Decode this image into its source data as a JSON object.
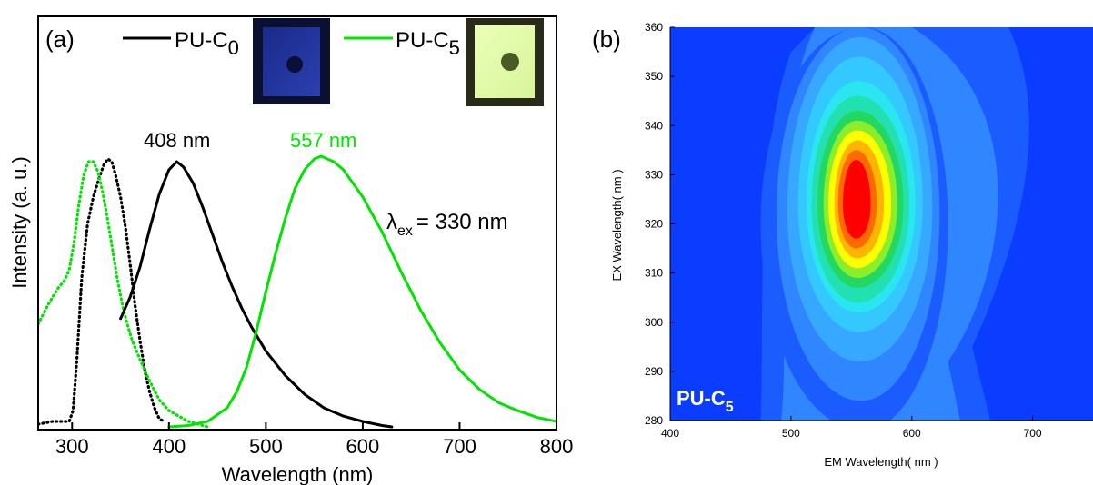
{
  "chart_data": [
    {
      "type": "line",
      "panel_label": "(a)",
      "xlabel": "Wavelength (nm)",
      "ylabel": "Intensity (a. u.)",
      "xlim": [
        265,
        800
      ],
      "ylim": [
        0,
        1.0
      ],
      "xticks": [
        "300",
        "400",
        "500",
        "600",
        "700",
        "800"
      ],
      "legend": [
        {
          "name_main": "PU-C",
          "name_sub": "0",
          "color": "#000000"
        },
        {
          "name_main": "PU-C",
          "name_sub": "5",
          "color": "#00e400"
        }
      ],
      "annotations": {
        "peak_black": "408 nm",
        "peak_green": "557 nm",
        "lambda_symbol": "λ",
        "lambda_sub": "ex",
        "lambda_value": "= 330 nm"
      },
      "series": [
        {
          "id": "black_excitation",
          "color": "#000000",
          "style": "dotted",
          "x": [
            265,
            280,
            290,
            297,
            301,
            305,
            310,
            316,
            322,
            328,
            333,
            337,
            341,
            345,
            350,
            355,
            360,
            365,
            370,
            375,
            380,
            385,
            390,
            395
          ],
          "y": [
            0.01,
            0.02,
            0.02,
            0.02,
            0.06,
            0.25,
            0.55,
            0.75,
            0.85,
            0.92,
            0.97,
            0.99,
            0.98,
            0.93,
            0.85,
            0.74,
            0.6,
            0.45,
            0.32,
            0.21,
            0.13,
            0.07,
            0.03,
            0.02
          ]
        },
        {
          "id": "green_excitation",
          "color": "#00e400",
          "style": "dotted",
          "x": [
            265,
            275,
            285,
            292,
            297,
            302,
            307,
            312,
            317,
            322,
            327,
            332,
            337,
            342,
            347,
            352,
            357,
            362,
            370,
            380,
            390,
            400,
            420,
            440
          ],
          "y": [
            0.38,
            0.45,
            0.51,
            0.54,
            0.58,
            0.68,
            0.82,
            0.93,
            0.98,
            0.98,
            0.94,
            0.86,
            0.76,
            0.65,
            0.54,
            0.45,
            0.38,
            0.32,
            0.25,
            0.17,
            0.1,
            0.06,
            0.02,
            0.0
          ]
        },
        {
          "id": "black_emission",
          "color": "#000000",
          "style": "solid",
          "x": [
            350,
            360,
            370,
            380,
            390,
            400,
            408,
            415,
            425,
            435,
            445,
            455,
            465,
            475,
            485,
            500,
            520,
            540,
            560,
            580,
            600,
            620,
            630
          ],
          "y": [
            0.4,
            0.48,
            0.59,
            0.73,
            0.86,
            0.95,
            0.98,
            0.96,
            0.9,
            0.81,
            0.71,
            0.61,
            0.52,
            0.44,
            0.37,
            0.28,
            0.19,
            0.12,
            0.07,
            0.04,
            0.02,
            0.005,
            0.0
          ]
        },
        {
          "id": "green_emission",
          "color": "#00e400",
          "style": "solid",
          "x": [
            400,
            420,
            440,
            460,
            470,
            480,
            490,
            500,
            510,
            520,
            530,
            540,
            550,
            557,
            570,
            580,
            600,
            620,
            640,
            660,
            680,
            700,
            720,
            740,
            760,
            780,
            800
          ],
          "y": [
            0.0,
            0.005,
            0.02,
            0.07,
            0.13,
            0.22,
            0.35,
            0.5,
            0.64,
            0.77,
            0.88,
            0.95,
            0.99,
            1.0,
            0.98,
            0.95,
            0.85,
            0.72,
            0.57,
            0.43,
            0.31,
            0.21,
            0.14,
            0.09,
            0.06,
            0.035,
            0.02
          ]
        }
      ]
    },
    {
      "type": "heatmap",
      "panel_label": "(b)",
      "xlabel": "EM Wavelength( nm )",
      "ylabel": "EX Wavelength( nm )",
      "xlim": [
        400,
        750
      ],
      "ylim": [
        280,
        360
      ],
      "xticks": [
        400,
        500,
        600,
        700
      ],
      "yticks": [
        280,
        290,
        300,
        310,
        320,
        330,
        340,
        350,
        360
      ],
      "sample_label_main": "PU-C",
      "sample_label_sub": "5",
      "background_color": "#0a3dff",
      "contour_levels": [
        {
          "level": 1,
          "color": "#1a5cff",
          "cx": 560,
          "cy": 320,
          "rx_left": 85,
          "rx_right": 70,
          "ry_top": 40,
          "ry_bottom": 42
        },
        {
          "level": 2,
          "color": "#2f86ff",
          "cx": 558,
          "cy": 322,
          "rx_left": 70,
          "rx_right": 65,
          "ry_top": 38,
          "ry_bottom": 38
        },
        {
          "level": 3,
          "color": "#37a8ff",
          "cx": 557,
          "cy": 323,
          "rx_left": 60,
          "rx_right": 60,
          "ry_top": 35,
          "ry_bottom": 31
        },
        {
          "level": 4,
          "color": "#33c9ff",
          "cx": 556,
          "cy": 324,
          "rx_left": 50,
          "rx_right": 53,
          "ry_top": 30,
          "ry_bottom": 26
        },
        {
          "level": 5,
          "color": "#29e6f0",
          "cx": 556,
          "cy": 324,
          "rx_left": 43,
          "rx_right": 47,
          "ry_top": 25,
          "ry_bottom": 22
        },
        {
          "level": 6,
          "color": "#22e0b0",
          "cx": 555,
          "cy": 324,
          "rx_left": 38,
          "rx_right": 43,
          "ry_top": 22,
          "ry_bottom": 20
        },
        {
          "level": 7,
          "color": "#22d860",
          "cx": 555,
          "cy": 324,
          "rx_left": 33,
          "rx_right": 38,
          "ry_top": 19,
          "ry_bottom": 17
        },
        {
          "level": 8,
          "color": "#8cee2a",
          "cx": 555,
          "cy": 324,
          "rx_left": 28,
          "rx_right": 33,
          "ry_top": 17,
          "ry_bottom": 15
        },
        {
          "level": 9,
          "color": "#ffff00",
          "cx": 555,
          "cy": 324,
          "rx_left": 24,
          "rx_right": 28,
          "ry_top": 15,
          "ry_bottom": 13
        },
        {
          "level": 10,
          "color": "#ffb400",
          "cx": 555,
          "cy": 324,
          "rx_left": 19,
          "rx_right": 22,
          "ry_top": 13,
          "ry_bottom": 11
        },
        {
          "level": 11,
          "color": "#ff6a00",
          "cx": 554,
          "cy": 324,
          "rx_left": 15,
          "rx_right": 17,
          "ry_top": 11,
          "ry_bottom": 9
        },
        {
          "level": 12,
          "color": "#ff0000",
          "cx": 554,
          "cy": 324,
          "rx_left": 11,
          "rx_right": 12,
          "ry_top": 9,
          "ry_bottom": 7
        }
      ]
    }
  ]
}
